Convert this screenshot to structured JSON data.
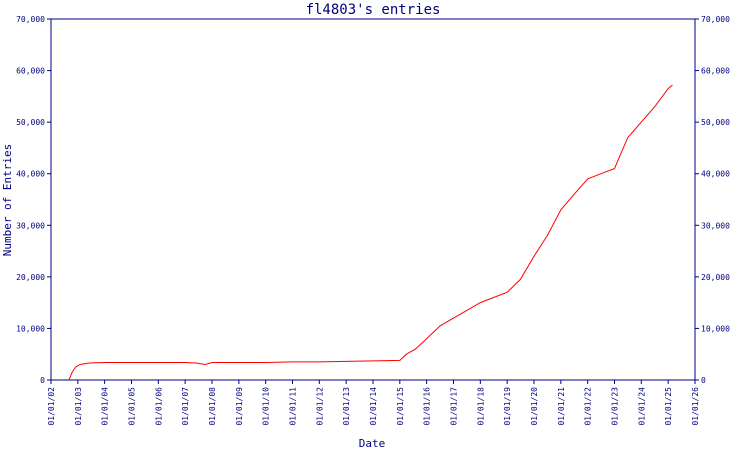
{
  "chart_data": {
    "type": "line",
    "title": "fl4803's entries",
    "xlabel": "Date",
    "ylabel": "Number of Entries",
    "xlim": [
      "2002-01-01",
      "2026-01-01"
    ],
    "ylim": [
      0,
      70000
    ],
    "x_ticks": [
      "01/01/02",
      "01/01/03",
      "01/01/04",
      "01/01/05",
      "01/01/06",
      "01/01/07",
      "01/01/08",
      "01/01/09",
      "01/01/10",
      "01/01/11",
      "01/01/12",
      "01/01/13",
      "01/01/14",
      "01/01/15",
      "01/01/16",
      "01/01/17",
      "01/01/18",
      "01/01/19",
      "01/01/20",
      "01/01/21",
      "01/01/22",
      "01/01/23",
      "01/01/24",
      "01/01/25",
      "01/01/26"
    ],
    "y_ticks": [
      "0",
      "10,000",
      "20,000",
      "30,000",
      "40,000",
      "50,000",
      "60,000",
      "70,000"
    ],
    "y_tick_values": [
      0,
      10000,
      20000,
      30000,
      40000,
      50000,
      60000,
      70000
    ],
    "grid": false,
    "line_color": "#ff0000",
    "axis_color": "#000080",
    "series": [
      {
        "x": [
          "2002-09-01",
          "2002-10-15",
          "2002-12-01",
          "2003-02-01",
          "2003-06-01",
          "2004-01-01",
          "2005-01-01",
          "2006-01-01",
          "2007-01-01",
          "2007-06-01",
          "2007-10-01",
          "2008-01-01",
          "2009-01-01",
          "2010-01-01",
          "2011-01-01",
          "2012-01-01",
          "2013-01-01",
          "2014-01-01",
          "2015-01-01",
          "2015-04-01",
          "2015-08-01",
          "2016-01-01",
          "2016-07-01",
          "2017-01-01",
          "2017-07-01",
          "2018-01-01",
          "2018-07-01",
          "2019-01-01",
          "2019-07-01",
          "2020-01-01",
          "2020-07-01",
          "2021-01-01",
          "2021-07-01",
          "2022-01-01",
          "2022-07-01",
          "2023-01-01",
          "2023-04-01",
          "2023-07-01",
          "2024-01-01",
          "2024-07-01",
          "2025-01-01",
          "2025-03-01"
        ],
        "y": [
          0,
          1500,
          2500,
          3000,
          3300,
          3400,
          3400,
          3400,
          3400,
          3300,
          3000,
          3400,
          3400,
          3400,
          3500,
          3500,
          3600,
          3700,
          3800,
          5000,
          6000,
          8000,
          10500,
          12000,
          13500,
          15000,
          16000,
          17000,
          19500,
          24000,
          28000,
          33000,
          36000,
          39000,
          40000,
          41000,
          44000,
          47000,
          50000,
          53000,
          56500,
          57200
        ]
      }
    ]
  }
}
